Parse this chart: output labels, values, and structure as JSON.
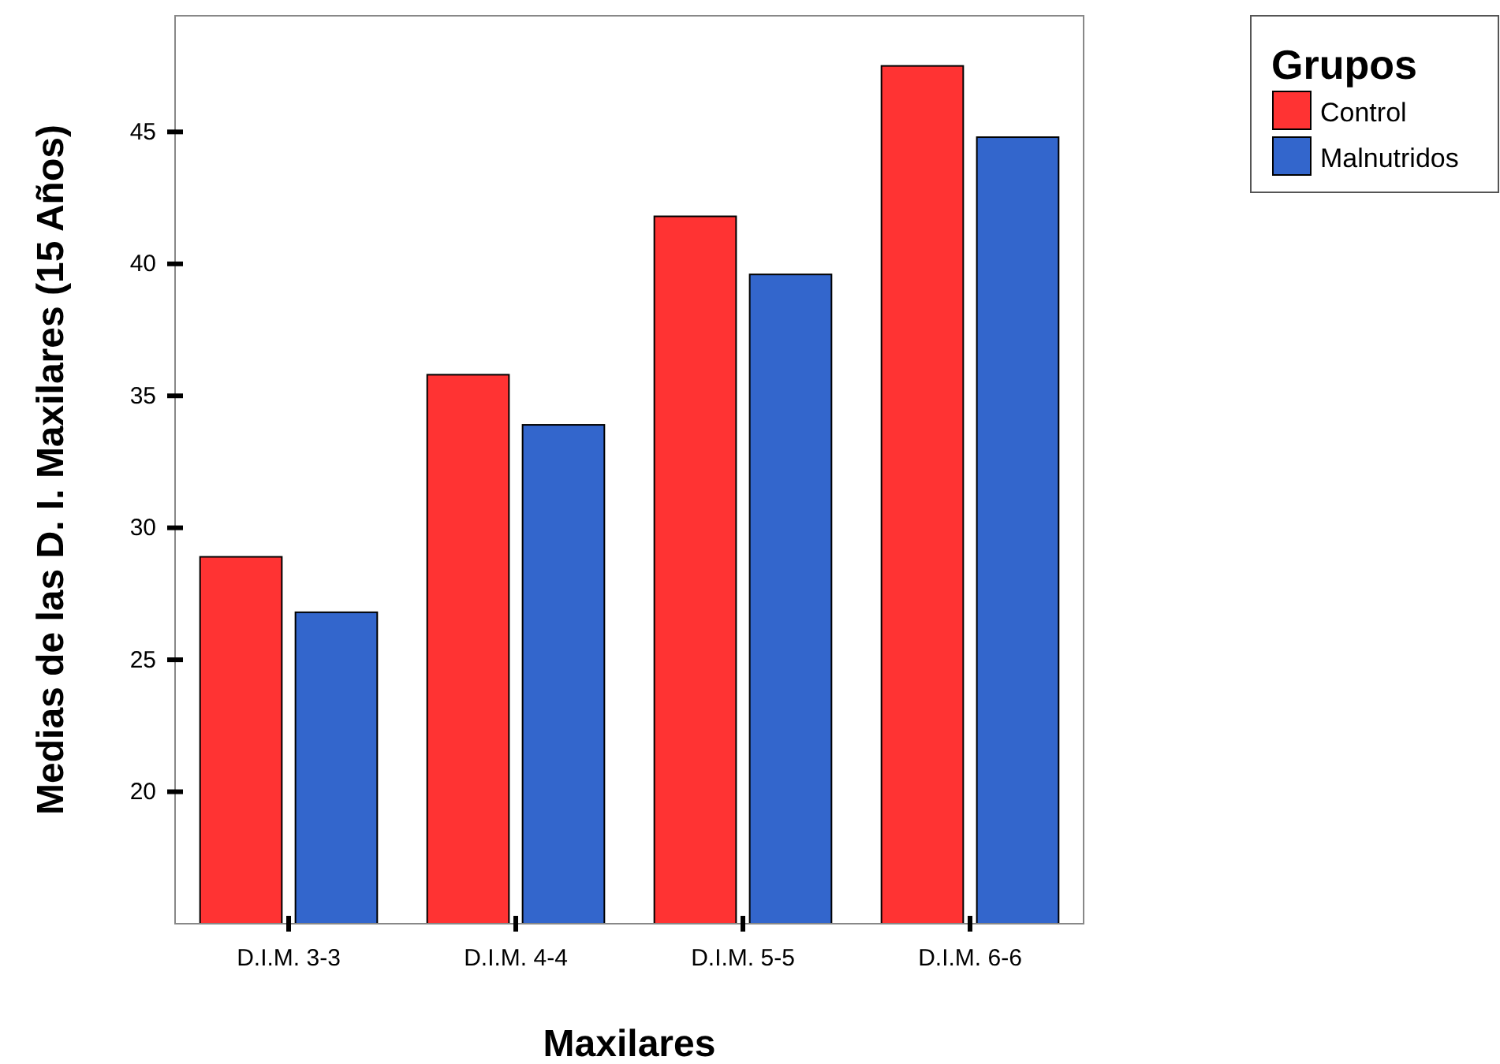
{
  "chart_data": {
    "type": "bar",
    "xlabel": "Maxilares",
    "ylabel": "Medias de las D. I. Maxilares (15 Años)",
    "legend_title": "Grupos",
    "categories": [
      "D.I.M. 3-3",
      "D.I.M. 4-4",
      "D.I.M. 5-5",
      "D.I.M. 6-6"
    ],
    "series": [
      {
        "name": "Control",
        "color": "#ff3333",
        "values": [
          28.9,
          35.8,
          41.8,
          47.5
        ]
      },
      {
        "name": "Malnutridos",
        "color": "#3366cc",
        "values": [
          26.8,
          33.9,
          39.6,
          44.8
        ]
      }
    ],
    "ylim": [
      15,
      49.4
    ],
    "yticks": [
      20,
      25,
      30,
      35,
      40,
      45
    ],
    "grid": false,
    "legend": "top right"
  }
}
